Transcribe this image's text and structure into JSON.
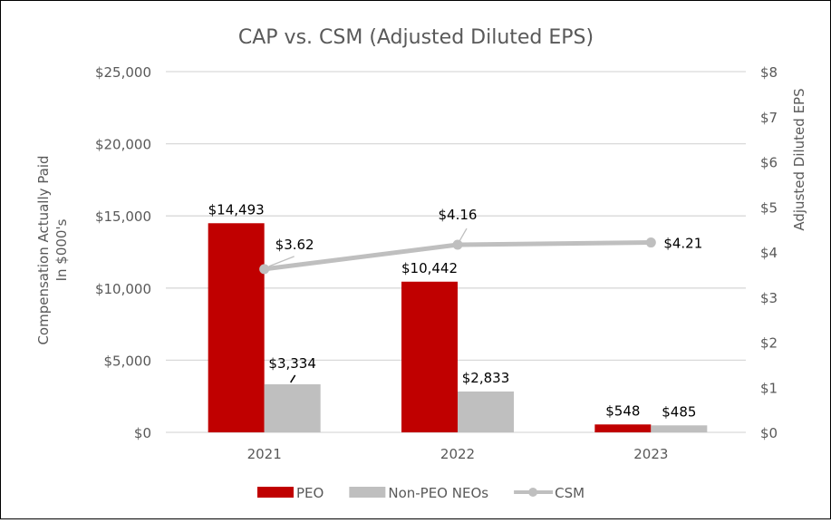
{
  "chart_data": {
    "type": "bar+line",
    "title": "CAP vs. CSM (Adjusted Diluted EPS)",
    "ylabel": [
      "Compensation Actually Paid",
      "In $000's"
    ],
    "y2label": "Adjusted Diluted EPS",
    "categories": [
      "2021",
      "2022",
      "2023"
    ],
    "ylim": [
      0,
      25000
    ],
    "yticks": [
      "$0",
      "$5,000",
      "$10,000",
      "$15,000",
      "$20,000",
      "$25,000"
    ],
    "y2lim": [
      0,
      8
    ],
    "y2ticks": [
      "$0",
      "$1",
      "$2",
      "$3",
      "$4",
      "$5",
      "$6",
      "$7",
      "$8"
    ],
    "grid": true,
    "legend_position": "bottom",
    "series": [
      {
        "name": "PEO",
        "type": "bar",
        "axis": "left",
        "color": "#C00000",
        "values": [
          14493,
          10442,
          548
        ],
        "labels": [
          "$14,493",
          "$10,442",
          "$548"
        ]
      },
      {
        "name": "Non-PEO NEOs",
        "type": "bar",
        "axis": "left",
        "color": "#BFBFBF",
        "values": [
          3334,
          2833,
          485
        ],
        "labels": [
          "$3,334",
          "$2,833",
          "$485"
        ]
      },
      {
        "name": "CSM",
        "type": "line",
        "axis": "right",
        "color": "#BFBFBF",
        "values": [
          3.62,
          4.16,
          4.21
        ],
        "labels": [
          "$3.62",
          "$4.16",
          "$4.21"
        ]
      }
    ]
  }
}
